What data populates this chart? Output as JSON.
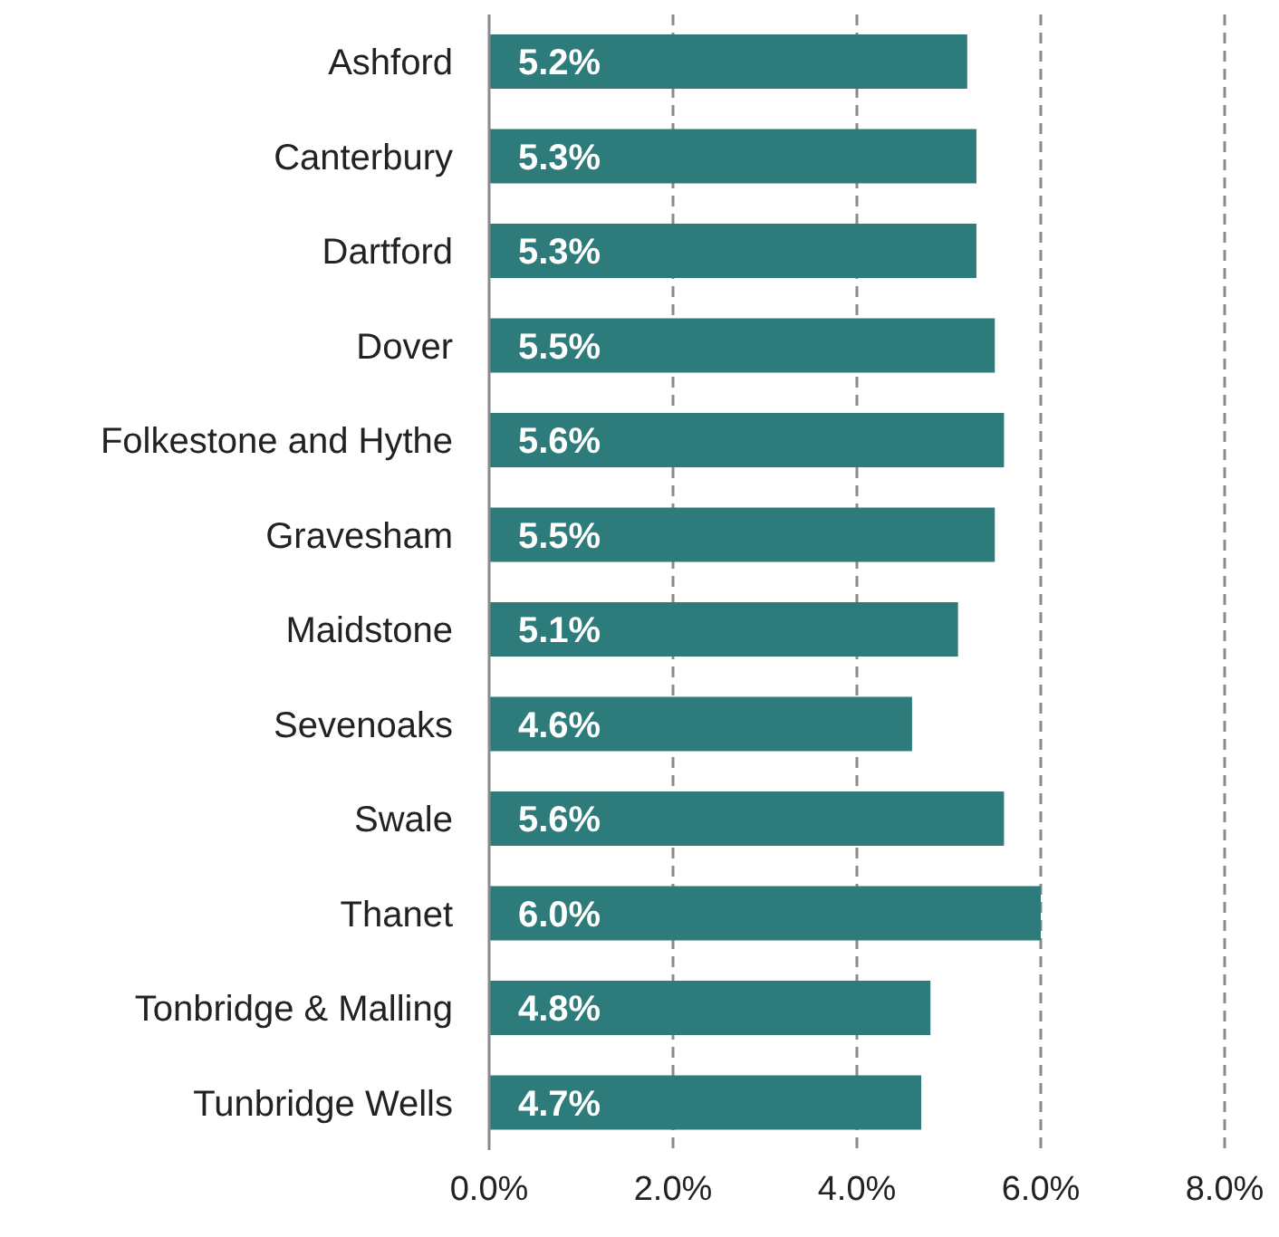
{
  "chart_data": {
    "type": "bar",
    "orientation": "horizontal",
    "categories": [
      "Ashford",
      "Canterbury",
      "Dartford",
      "Dover",
      "Folkestone and Hythe",
      "Gravesham",
      "Maidstone",
      "Sevenoaks",
      "Swale",
      "Thanet",
      "Tonbridge & Malling",
      "Tunbridge Wells"
    ],
    "values": [
      5.2,
      5.3,
      5.3,
      5.5,
      5.6,
      5.5,
      5.1,
      4.6,
      5.6,
      6.0,
      4.8,
      4.7
    ],
    "value_labels": [
      "5.2%",
      "5.3%",
      "5.3%",
      "5.5%",
      "5.6%",
      "5.5%",
      "5.1%",
      "4.6%",
      "5.6%",
      "6.0%",
      "4.8%",
      "4.7%"
    ],
    "color": "#2e7b7b",
    "xlim": [
      0,
      8
    ],
    "xticks": [
      {
        "value": 0,
        "label": "0.0%"
      },
      {
        "value": 2,
        "label": "2.0%"
      },
      {
        "value": 4,
        "label": "4.0%"
      },
      {
        "value": 6,
        "label": "6.0%"
      },
      {
        "value": 8,
        "label": "8.0%"
      }
    ],
    "grid": "x"
  }
}
